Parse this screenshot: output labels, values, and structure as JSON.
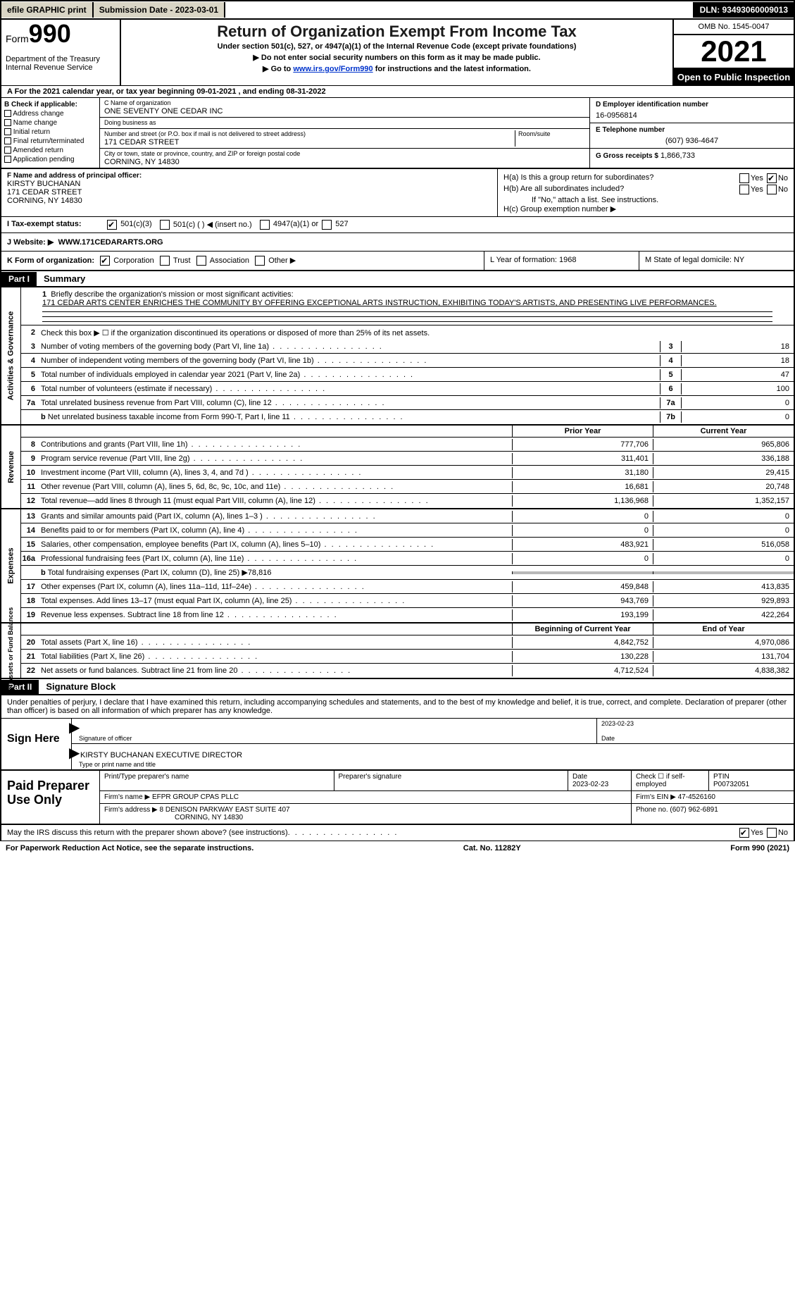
{
  "topbar": {
    "efile": "efile GRAPHIC print",
    "submission": "Submission Date - 2023-03-01",
    "dln": "DLN: 93493060009013"
  },
  "header": {
    "form": "Form",
    "formnum": "990",
    "dept": "Department of the Treasury",
    "irs": "Internal Revenue Service",
    "title": "Return of Organization Exempt From Income Tax",
    "subtitle": "Under section 501(c), 527, or 4947(a)(1) of the Internal Revenue Code (except private foundations)",
    "instruct1": "▶ Do not enter social security numbers on this form as it may be made public.",
    "instruct2_pre": "▶ Go to ",
    "instruct2_link": "www.irs.gov/Form990",
    "instruct2_post": " for instructions and the latest information.",
    "omb": "OMB No. 1545-0047",
    "year": "2021",
    "openpub": "Open to Public Inspection"
  },
  "row_a": "A For the 2021 calendar year, or tax year beginning 09-01-2021   , and ending 08-31-2022",
  "col_b": {
    "title": "B Check if applicable:",
    "items": [
      "Address change",
      "Name change",
      "Initial return",
      "Final return/terminated",
      "Amended return",
      "Application pending"
    ]
  },
  "col_c": {
    "name_label": "C Name of organization",
    "name": "ONE SEVENTY ONE CEDAR INC",
    "dba_label": "Doing business as",
    "dba": "",
    "addr_label": "Number and street (or P.O. box if mail is not delivered to street address)",
    "room_label": "Room/suite",
    "addr": "171 CEDAR STREET",
    "city_label": "City or town, state or province, country, and ZIP or foreign postal code",
    "city": "CORNING, NY  14830"
  },
  "col_d": {
    "ein_label": "D Employer identification number",
    "ein": "16-0956814",
    "tel_label": "E Telephone number",
    "tel": "(607) 936-4647",
    "gross_label": "G Gross receipts $",
    "gross": "1,866,733"
  },
  "section_f": {
    "label": "F  Name and address of principal officer:",
    "name": "KIRSTY BUCHANAN",
    "addr1": "171 CEDAR STREET",
    "addr2": "CORNING, NY  14830"
  },
  "section_h": {
    "ha": "H(a)  Is this a group return for subordinates?",
    "hb": "H(b)  Are all subordinates included?",
    "hb_note": "If \"No,\" attach a list. See instructions.",
    "hc": "H(c)  Group exemption number ▶"
  },
  "row_i": {
    "label": "I    Tax-exempt status:",
    "opt1": "501(c)(3)",
    "opt2": "501(c) (  ) ◀ (insert no.)",
    "opt3": "4947(a)(1) or",
    "opt4": "527"
  },
  "row_j": {
    "label": "J    Website: ▶",
    "val": "WWW.171CEDARARTS.ORG"
  },
  "row_k": {
    "label": "K Form of organization:",
    "corp": "Corporation",
    "trust": "Trust",
    "assoc": "Association",
    "other": "Other ▶",
    "l": "L Year of formation: 1968",
    "m": "M State of legal domicile: NY"
  },
  "part1": {
    "tag": "Part I",
    "title": "Summary"
  },
  "sidebar": {
    "s1": "Activities & Governance",
    "s2": "Revenue",
    "s3": "Expenses",
    "s4": "Net Assets or Fund Balances"
  },
  "line1": {
    "num": "1",
    "label": "Briefly describe the organization's mission or most significant activities:",
    "text": "171 CEDAR ARTS CENTER ENRICHES THE COMMUNITY BY OFFERING EXCEPTIONAL ARTS INSTRUCTION, EXHIBITING TODAY'S ARTISTS, AND PRESENTING LIVE PERFORMANCES."
  },
  "line2": {
    "num": "2",
    "label": "Check this box ▶ ☐  if the organization discontinued its operations or disposed of more than 25% of its net assets."
  },
  "lines_single": [
    {
      "num": "3",
      "label": "Number of voting members of the governing body (Part VI, line 1a)",
      "box": "3",
      "val": "18"
    },
    {
      "num": "4",
      "label": "Number of independent voting members of the governing body (Part VI, line 1b)",
      "box": "4",
      "val": "18"
    },
    {
      "num": "5",
      "label": "Total number of individuals employed in calendar year 2021 (Part V, line 2a)",
      "box": "5",
      "val": "47"
    },
    {
      "num": "6",
      "label": "Total number of volunteers (estimate if necessary)",
      "box": "6",
      "val": "100"
    },
    {
      "num": "7a",
      "label": "Total unrelated business revenue from Part VIII, column (C), line 12",
      "box": "7a",
      "val": "0"
    },
    {
      "num": "b",
      "label": "Net unrelated business taxable income from Form 990-T, Part I, line 11",
      "box": "7b",
      "val": "0",
      "nonum": true
    }
  ],
  "twocol_hdr": {
    "c1": "Prior Year",
    "c2": "Current Year"
  },
  "revenue_rows": [
    {
      "num": "8",
      "label": "Contributions and grants (Part VIII, line 1h)",
      "c1": "777,706",
      "c2": "965,806"
    },
    {
      "num": "9",
      "label": "Program service revenue (Part VIII, line 2g)",
      "c1": "311,401",
      "c2": "336,188"
    },
    {
      "num": "10",
      "label": "Investment income (Part VIII, column (A), lines 3, 4, and 7d )",
      "c1": "31,180",
      "c2": "29,415"
    },
    {
      "num": "11",
      "label": "Other revenue (Part VIII, column (A), lines 5, 6d, 8c, 9c, 10c, and 11e)",
      "c1": "16,681",
      "c2": "20,748"
    },
    {
      "num": "12",
      "label": "Total revenue—add lines 8 through 11 (must equal Part VIII, column (A), line 12)",
      "c1": "1,136,968",
      "c2": "1,352,157"
    }
  ],
  "expense_rows": [
    {
      "num": "13",
      "label": "Grants and similar amounts paid (Part IX, column (A), lines 1–3 )",
      "c1": "0",
      "c2": "0"
    },
    {
      "num": "14",
      "label": "Benefits paid to or for members (Part IX, column (A), line 4)",
      "c1": "0",
      "c2": "0"
    },
    {
      "num": "15",
      "label": "Salaries, other compensation, employee benefits (Part IX, column (A), lines 5–10)",
      "c1": "483,921",
      "c2": "516,058"
    },
    {
      "num": "16a",
      "label": "Professional fundraising fees (Part IX, column (A), line 11e)",
      "c1": "0",
      "c2": "0"
    },
    {
      "num": "b",
      "label": "Total fundraising expenses (Part IX, column (D), line 25) ▶78,816",
      "shaded": true
    },
    {
      "num": "17",
      "label": "Other expenses (Part IX, column (A), lines 11a–11d, 11f–24e)",
      "c1": "459,848",
      "c2": "413,835"
    },
    {
      "num": "18",
      "label": "Total expenses. Add lines 13–17 (must equal Part IX, column (A), line 25)",
      "c1": "943,769",
      "c2": "929,893"
    },
    {
      "num": "19",
      "label": "Revenue less expenses. Subtract line 18 from line 12",
      "c1": "193,199",
      "c2": "422,264"
    }
  ],
  "netassets_hdr": {
    "c1": "Beginning of Current Year",
    "c2": "End of Year"
  },
  "netassets_rows": [
    {
      "num": "20",
      "label": "Total assets (Part X, line 16)",
      "c1": "4,842,752",
      "c2": "4,970,086"
    },
    {
      "num": "21",
      "label": "Total liabilities (Part X, line 26)",
      "c1": "130,228",
      "c2": "131,704"
    },
    {
      "num": "22",
      "label": "Net assets or fund balances. Subtract line 21 from line 20",
      "c1": "4,712,524",
      "c2": "4,838,382"
    }
  ],
  "part2": {
    "tag": "Part II",
    "title": "Signature Block"
  },
  "declare": "Under penalties of perjury, I declare that I have examined this return, including accompanying schedules and statements, and to the best of my knowledge and belief, it is true, correct, and complete. Declaration of preparer (other than officer) is based on all information of which preparer has any knowledge.",
  "sign": {
    "label": "Sign Here",
    "sig_of_officer": "Signature of officer",
    "date_label": "Date",
    "date": "2023-02-23",
    "name": "KIRSTY BUCHANAN  EXECUTIVE DIRECTOR",
    "name_label": "Type or print name and title"
  },
  "paid": {
    "label": "Paid Preparer Use Only",
    "cols": {
      "print_label": "Print/Type preparer's name",
      "sig_label": "Preparer's signature",
      "date_label": "Date",
      "date": "2023-02-23",
      "check_label": "Check ☐ if self-employed",
      "ptin_label": "PTIN",
      "ptin": "P00732051"
    },
    "firm_name_label": "Firm's name     ▶",
    "firm_name": "EFPR GROUP CPAS PLLC",
    "firm_ein_label": "Firm's EIN ▶",
    "firm_ein": "47-4526160",
    "firm_addr_label": "Firm's address ▶",
    "firm_addr1": "8 DENISON PARKWAY EAST SUITE 407",
    "firm_addr2": "CORNING, NY  14830",
    "phone_label": "Phone no.",
    "phone": "(607) 962-6891"
  },
  "discuss": {
    "text": "May the IRS discuss this return with the preparer shown above? (see instructions)",
    "yes": "Yes",
    "no": "No"
  },
  "footer": {
    "left": "For Paperwork Reduction Act Notice, see the separate instructions.",
    "mid": "Cat. No. 11282Y",
    "right": "Form 990 (2021)"
  }
}
